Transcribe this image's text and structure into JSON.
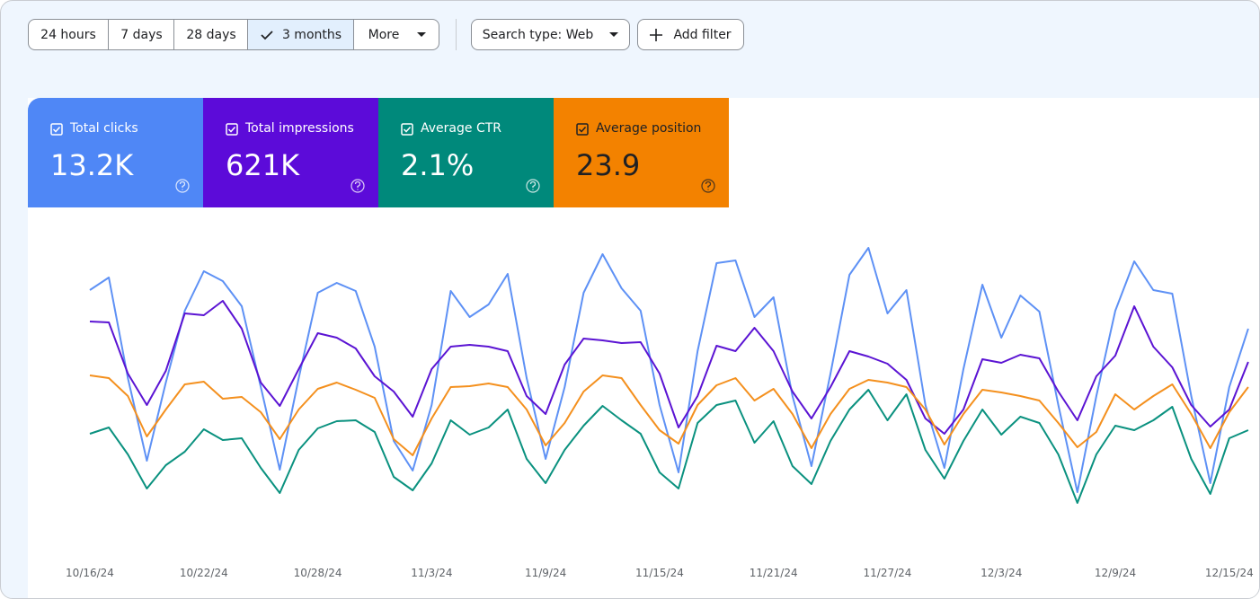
{
  "toolbar": {
    "ranges": [
      "24 hours",
      "7 days",
      "28 days",
      "3 months",
      "More"
    ],
    "search_type": "Search type: Web",
    "add_filter": "Add filter"
  },
  "chart_data": {
    "type": "line",
    "categories": [
      "10/16/24",
      null,
      null,
      null,
      null,
      null,
      "10/22/24",
      null,
      null,
      null,
      null,
      null,
      "10/28/24",
      null,
      null,
      null,
      null,
      null,
      "11/3/24",
      null,
      null,
      null,
      null,
      null,
      "11/9/24",
      null,
      null,
      null,
      null,
      null,
      "11/15/24",
      null,
      null,
      null,
      null,
      null,
      "11/21/24",
      null,
      null,
      null,
      null,
      null,
      "11/27/24",
      null,
      null,
      null,
      null,
      null,
      "12/3/24",
      null,
      null,
      null,
      null,
      null,
      "12/9/24",
      null,
      null,
      null,
      null,
      null,
      "12/15/24",
      null
    ],
    "ylim": [
      0,
      350
    ],
    "series": [
      {
        "name": "Total clicks",
        "total": "13.2K",
        "color": "#5e91f5",
        "card_color": "#4f87f6",
        "text_color": "#ffffff",
        "values": [
          278,
          292,
          180,
          88,
          175,
          255,
          299,
          288,
          260,
          170,
          78,
          180,
          275,
          286,
          277,
          215,
          110,
          77,
          150,
          277,
          248,
          262,
          296,
          180,
          90,
          170,
          275,
          318,
          280,
          255,
          150,
          75,
          210,
          308,
          311,
          248,
          270,
          160,
          82,
          185,
          295,
          325,
          252,
          278,
          150,
          80,
          190,
          284,
          225,
          272,
          254,
          150,
          53,
          160,
          255,
          310,
          278,
          274,
          160,
          63,
          170,
          235
        ]
      },
      {
        "name": "Total impressions",
        "total": "621K",
        "color": "#5b14d3",
        "card_color": "#5c0bd9",
        "text_color": "#ffffff",
        "values": [
          243,
          242,
          185,
          150,
          188,
          252,
          250,
          266,
          235,
          175,
          149,
          190,
          230,
          225,
          213,
          182,
          165,
          137,
          190,
          215,
          217,
          215,
          210,
          160,
          140,
          195,
          224,
          222,
          219,
          220,
          185,
          125,
          160,
          216,
          210,
          236,
          210,
          165,
          135,
          170,
          210,
          204,
          196,
          178,
          135,
          118,
          145,
          201,
          197,
          206,
          202,
          165,
          133,
          182,
          205,
          260,
          215,
          192,
          150,
          126,
          145,
          198
        ]
      },
      {
        "name": "Average CTR",
        "total": "2.1%",
        "color": "#0a917f",
        "card_color": "#00897b",
        "text_color": "#ffffff",
        "values": [
          118,
          125,
          95,
          57,
          83,
          98,
          123,
          111,
          113,
          80,
          52,
          100,
          124,
          132,
          133,
          120,
          70,
          55,
          85,
          133,
          117,
          125,
          145,
          90,
          63,
          100,
          127,
          149,
          133,
          118,
          75,
          57,
          130,
          150,
          155,
          108,
          132,
          82,
          62,
          110,
          145,
          167,
          133,
          162,
          100,
          68,
          110,
          145,
          117,
          137,
          130,
          95,
          41,
          95,
          127,
          122,
          133,
          148,
          90,
          51,
          113,
          122
        ]
      },
      {
        "name": "Average position",
        "total": "23.9",
        "color": "#f4901e",
        "card_color": "#f38200",
        "text_color": "#202124",
        "values": [
          183,
          180,
          160,
          115,
          145,
          173,
          176,
          157,
          159,
          142,
          112,
          145,
          168,
          175,
          167,
          158,
          112,
          94,
          135,
          170,
          171,
          174,
          170,
          145,
          105,
          130,
          165,
          183,
          180,
          150,
          122,
          107,
          150,
          172,
          180,
          155,
          168,
          140,
          102,
          140,
          168,
          178,
          175,
          170,
          145,
          106,
          140,
          167,
          164,
          160,
          155,
          130,
          103,
          120,
          162,
          145,
          160,
          173,
          140,
          102,
          142,
          170
        ]
      }
    ]
  }
}
